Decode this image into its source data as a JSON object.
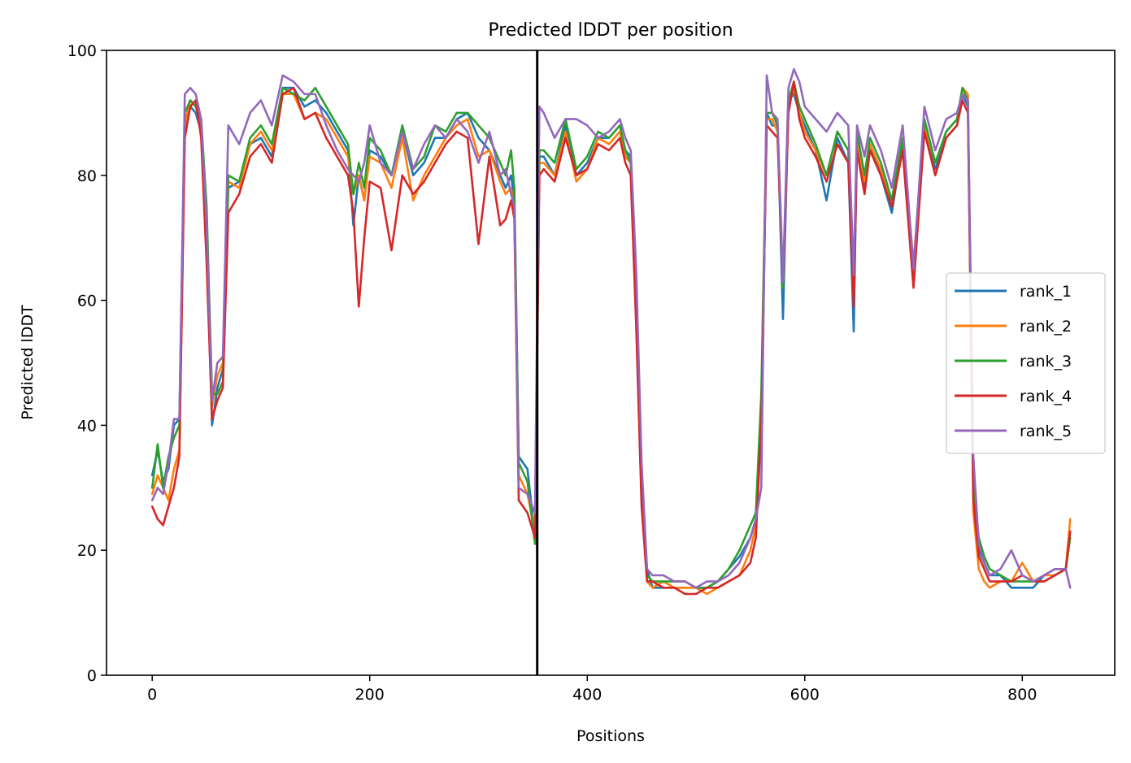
{
  "chart_data": {
    "type": "line",
    "title": "Predicted lDDT per position",
    "xlabel": "Positions",
    "ylabel": "Predicted lDDT",
    "xlim": [
      -42,
      885
    ],
    "ylim": [
      0,
      100
    ],
    "x_ticks": [
      0,
      200,
      400,
      600,
      800
    ],
    "y_ticks": [
      0,
      20,
      40,
      60,
      80,
      100
    ],
    "legend_position": "center-right",
    "grid": false,
    "chain_boundary_x": 354,
    "x": [
      0,
      5,
      10,
      15,
      20,
      25,
      30,
      35,
      40,
      45,
      50,
      55,
      60,
      65,
      70,
      80,
      90,
      100,
      110,
      120,
      130,
      140,
      150,
      160,
      170,
      180,
      185,
      190,
      195,
      200,
      210,
      220,
      230,
      240,
      250,
      260,
      270,
      280,
      290,
      300,
      310,
      320,
      325,
      330,
      333,
      337,
      345,
      352,
      356,
      360,
      370,
      380,
      390,
      400,
      410,
      420,
      430,
      435,
      440,
      445,
      450,
      455,
      460,
      470,
      480,
      490,
      500,
      510,
      520,
      530,
      540,
      550,
      555,
      560,
      565,
      570,
      575,
      580,
      585,
      590,
      595,
      600,
      610,
      620,
      630,
      640,
      645,
      648,
      655,
      660,
      670,
      680,
      690,
      700,
      710,
      720,
      730,
      740,
      745,
      750,
      755,
      760,
      765,
      770,
      780,
      790,
      800,
      810,
      820,
      830,
      840,
      844
    ],
    "series": [
      {
        "name": "rank_1",
        "color": "#1f77b4",
        "values": [
          32,
          36,
          31,
          33,
          40,
          41,
          89,
          91,
          90,
          87,
          70,
          40,
          46,
          49,
          78,
          79,
          85,
          86,
          83,
          94,
          94,
          91,
          92,
          90,
          87,
          84,
          72,
          80,
          76,
          84,
          83,
          80,
          87,
          80,
          82,
          86,
          86,
          89,
          90,
          86,
          84,
          80,
          78,
          80,
          76,
          35,
          33,
          22,
          83,
          83,
          80,
          88,
          80,
          82,
          86,
          86,
          88,
          84,
          83,
          60,
          30,
          17,
          14,
          14,
          14,
          14,
          14,
          14,
          15,
          17,
          19,
          22,
          25,
          40,
          90,
          88,
          88,
          57,
          92,
          93,
          90,
          88,
          84,
          76,
          86,
          82,
          55,
          86,
          78,
          85,
          80,
          74,
          85,
          63,
          88,
          81,
          86,
          88,
          93,
          91,
          28,
          20,
          18,
          16,
          16,
          14,
          14,
          14,
          16,
          17,
          17,
          23
        ]
      },
      {
        "name": "rank_2",
        "color": "#ff7f0e",
        "values": [
          29,
          32,
          30,
          28,
          33,
          36,
          88,
          92,
          91,
          88,
          68,
          43,
          48,
          50,
          79,
          78,
          85,
          87,
          84,
          93,
          93,
          89,
          90,
          89,
          86,
          83,
          77,
          80,
          76,
          83,
          82,
          78,
          86,
          76,
          80,
          83,
          86,
          88,
          89,
          83,
          84,
          79,
          77,
          78,
          74,
          32,
          29,
          23,
          82,
          82,
          80,
          87,
          79,
          81,
          86,
          85,
          87,
          83,
          82,
          58,
          28,
          15,
          14,
          15,
          14,
          14,
          14,
          13,
          14,
          15,
          16,
          20,
          24,
          42,
          89,
          89,
          87,
          62,
          91,
          94,
          90,
          87,
          84,
          80,
          87,
          84,
          61,
          85,
          79,
          85,
          81,
          76,
          86,
          66,
          88,
          82,
          87,
          89,
          94,
          93,
          26,
          17,
          15,
          14,
          15,
          15,
          18,
          15,
          16,
          16,
          17,
          25
        ]
      },
      {
        "name": "rank_3",
        "color": "#2ca02c",
        "values": [
          30,
          37,
          30,
          35,
          38,
          40,
          90,
          92,
          91,
          89,
          75,
          45,
          45,
          47,
          80,
          79,
          86,
          88,
          85,
          94,
          93,
          92,
          94,
          91,
          88,
          85,
          77,
          82,
          78,
          86,
          84,
          80,
          88,
          81,
          83,
          88,
          87,
          90,
          90,
          88,
          86,
          82,
          80,
          84,
          78,
          34,
          31,
          21,
          84,
          84,
          82,
          89,
          81,
          83,
          87,
          86,
          88,
          84,
          82,
          62,
          31,
          16,
          15,
          15,
          15,
          15,
          14,
          14,
          15,
          17,
          20,
          24,
          26,
          45,
          90,
          90,
          88,
          62,
          92,
          95,
          91,
          89,
          85,
          80,
          87,
          84,
          60,
          87,
          80,
          86,
          82,
          76,
          86,
          64,
          89,
          82,
          87,
          89,
          94,
          92,
          30,
          22,
          19,
          17,
          16,
          15,
          15,
          15,
          15,
          16,
          17,
          22
        ]
      },
      {
        "name": "rank_4",
        "color": "#d62728",
        "values": [
          27,
          25,
          24,
          27,
          30,
          35,
          86,
          91,
          92,
          86,
          66,
          41,
          44,
          46,
          74,
          77,
          83,
          85,
          82,
          93,
          94,
          89,
          90,
          86,
          83,
          80,
          74,
          59,
          70,
          79,
          78,
          68,
          80,
          77,
          79,
          82,
          85,
          87,
          86,
          69,
          83,
          72,
          73,
          76,
          73,
          28,
          26,
          22,
          80,
          81,
          79,
          86,
          80,
          81,
          85,
          84,
          86,
          82,
          80,
          56,
          27,
          15,
          15,
          14,
          14,
          13,
          13,
          14,
          14,
          15,
          16,
          18,
          22,
          40,
          88,
          87,
          86,
          63,
          90,
          95,
          89,
          86,
          83,
          79,
          85,
          82,
          59,
          84,
          77,
          84,
          80,
          75,
          84,
          62,
          87,
          80,
          86,
          88,
          92,
          90,
          28,
          19,
          17,
          15,
          15,
          15,
          16,
          15,
          15,
          16,
          17,
          23
        ]
      },
      {
        "name": "rank_5",
        "color": "#9467bd",
        "values": [
          28,
          30,
          29,
          34,
          41,
          41,
          93,
          94,
          93,
          89,
          72,
          44,
          50,
          51,
          88,
          85,
          90,
          92,
          88,
          96,
          95,
          93,
          93,
          88,
          84,
          81,
          80,
          79,
          82,
          88,
          82,
          80,
          87,
          81,
          85,
          88,
          86,
          89,
          87,
          82,
          87,
          80,
          81,
          77,
          75,
          30,
          29,
          26,
          91,
          90,
          86,
          89,
          89,
          88,
          86,
          87,
          89,
          86,
          84,
          65,
          34,
          17,
          16,
          16,
          15,
          15,
          14,
          15,
          15,
          16,
          18,
          22,
          25,
          30,
          96,
          90,
          89,
          63,
          94,
          97,
          95,
          91,
          89,
          87,
          90,
          88,
          64,
          88,
          83,
          88,
          84,
          78,
          88,
          65,
          91,
          84,
          89,
          90,
          93,
          92,
          35,
          21,
          18,
          16,
          17,
          20,
          16,
          15,
          16,
          17,
          17,
          14
        ]
      }
    ]
  }
}
